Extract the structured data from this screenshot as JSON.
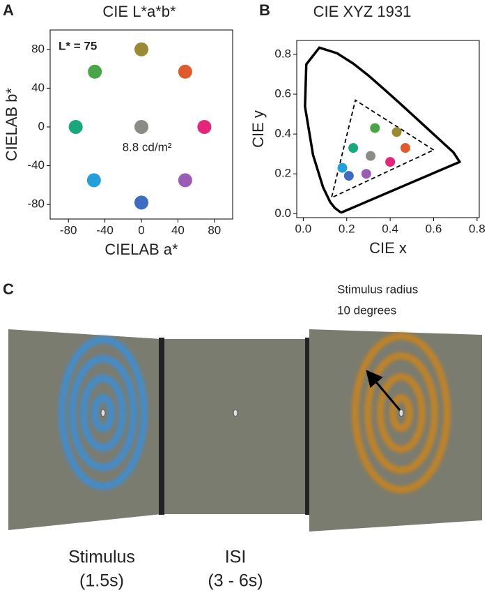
{
  "panels": {
    "a": "A",
    "b": "B",
    "c": "C"
  },
  "chart_data": [
    {
      "type": "scatter",
      "title": "CIE L*a*b*",
      "x_label": "CIELAB a*",
      "y_label": "CIELAB b*",
      "annotations": [
        "L* = 75",
        "8.8 cd/m²"
      ],
      "xlim": [
        -100,
        100
      ],
      "ylim": [
        -95,
        100
      ],
      "xticks": [
        -80,
        -40,
        0,
        40,
        80
      ],
      "yticks": [
        -80,
        -40,
        0,
        40,
        80
      ],
      "points": {
        "x": [
          0,
          48,
          -51,
          -72,
          0,
          69,
          -52,
          48,
          0
        ],
        "values": [
          80,
          57,
          57,
          0,
          0,
          0,
          -55,
          -55,
          -78
        ],
        "colors": [
          "#9a8a33",
          "#e15a2b",
          "#49a647",
          "#19a77c",
          "#8a8a86",
          "#e5257a",
          "#239fdc",
          "#9a5cb4",
          "#3f6cc2"
        ]
      }
    },
    {
      "type": "scatter",
      "title": "CIE XYZ 1931",
      "x_label": "CIE x",
      "y_label": "CIE y",
      "xlim": [
        -0.03,
        0.81
      ],
      "ylim": [
        -0.02,
        0.87
      ],
      "xticks": [
        {
          "value": 0,
          "label": "0.0"
        },
        0.2,
        0.4,
        0.6,
        0.8
      ],
      "yticks": [
        {
          "value": 0,
          "label": "0.0"
        },
        0.2,
        0.4,
        0.6,
        0.8
      ],
      "locus": {
        "x": [
          0.174,
          0.144,
          0.124,
          0.091,
          0.045,
          0.008,
          0.014,
          0.074,
          0.155,
          0.23,
          0.302,
          0.373,
          0.444,
          0.512,
          0.575,
          0.627,
          0.691,
          0.72,
          0.174
        ],
        "values": [
          0.005,
          0.03,
          0.058,
          0.133,
          0.295,
          0.538,
          0.75,
          0.834,
          0.806,
          0.754,
          0.692,
          0.624,
          0.555,
          0.487,
          0.424,
          0.372,
          0.308,
          0.26,
          0.005
        ]
      },
      "gamut": {
        "x": [
          0.6,
          0.24,
          0.13,
          0.6
        ],
        "values": [
          0.32,
          0.57,
          0.08,
          0.32
        ]
      },
      "points": {
        "x": [
          0.43,
          0.47,
          0.33,
          0.23,
          0.31,
          0.4,
          0.18,
          0.29,
          0.21
        ],
        "values": [
          0.41,
          0.33,
          0.43,
          0.33,
          0.29,
          0.26,
          0.23,
          0.2,
          0.19
        ],
        "colors": [
          "#9a8a33",
          "#e15a2b",
          "#49a647",
          "#19a77c",
          "#8a8a86",
          "#e5257a",
          "#239fdc",
          "#9a5cb4",
          "#3f6cc2"
        ]
      }
    }
  ],
  "stimulus": {
    "annotation": [
      "Stimulus radius",
      "10 degrees"
    ],
    "labels": [
      [
        "Stimulus",
        "(1.5s)"
      ],
      [
        "ISI",
        "(3 - 6s)"
      ]
    ]
  }
}
